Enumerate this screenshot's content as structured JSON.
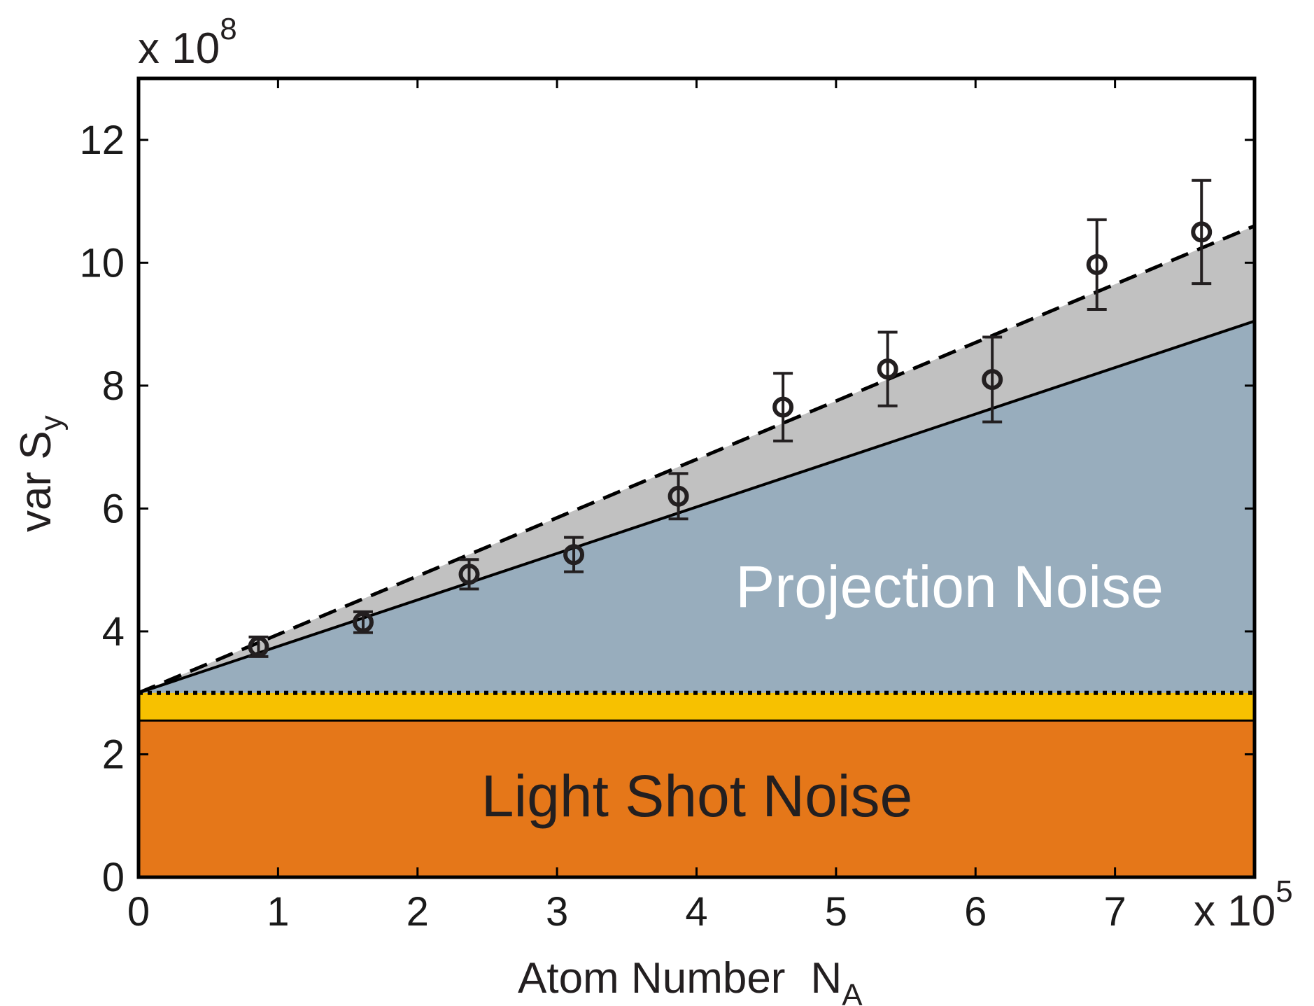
{
  "chart_data": {
    "type": "scatter",
    "xlabel": "Atom Number",
    "xlabel_sub": "N",
    "xlabel_sub_index": "A",
    "ylabel": "var S",
    "ylabel_sub": "y",
    "x_multiplier": "x 10",
    "x_multiplier_exp": "5",
    "y_multiplier": "x 10",
    "y_multiplier_exp": "8",
    "xlim": [
      0,
      800000
    ],
    "ylim": [
      0,
      1300000000
    ],
    "x_ticks": [
      {
        "value": 0,
        "label": "0"
      },
      {
        "value": 100000,
        "label": "1"
      },
      {
        "value": 200000,
        "label": "2"
      },
      {
        "value": 300000,
        "label": "3"
      },
      {
        "value": 400000,
        "label": "4"
      },
      {
        "value": 500000,
        "label": "5"
      },
      {
        "value": 600000,
        "label": "6"
      },
      {
        "value": 700000,
        "label": "7"
      }
    ],
    "y_ticks": [
      {
        "value": 0,
        "label": "0"
      },
      {
        "value": 200000000,
        "label": "2"
      },
      {
        "value": 400000000,
        "label": "4"
      },
      {
        "value": 600000000,
        "label": "6"
      },
      {
        "value": 800000000,
        "label": "8"
      },
      {
        "value": 1000000000,
        "label": "10"
      },
      {
        "value": 1200000000,
        "label": "12"
      }
    ],
    "grid": false,
    "series": [
      {
        "marker": "open-circle",
        "x": [
          86000,
          161000,
          237000,
          312000,
          387000,
          462000,
          537000,
          612000,
          687000,
          762000
        ],
        "y": [
          375000000,
          415000000,
          493000000,
          525000000,
          620000000,
          765000000,
          827000000,
          810000000,
          997000000,
          1050000000
        ],
        "yerr": [
          16000000,
          17000000,
          24000000,
          28000000,
          37000000,
          55000000,
          60000000,
          69000000,
          73000000,
          84000000
        ]
      }
    ],
    "fits": [
      {
        "style": "solid",
        "x": [
          0,
          800000
        ],
        "y": [
          300000000,
          905000000
        ]
      },
      {
        "style": "dashed",
        "x": [
          0,
          800000
        ],
        "y": [
          300000000,
          1060000000
        ]
      }
    ],
    "bands": [
      {
        "label": "Light Shot Noise",
        "y0": 0,
        "y1": 255000000,
        "color": "#e57719",
        "label_color": "#231f20"
      },
      {
        "y0": 255000000,
        "y1": 300000000,
        "color": "#f7c100"
      },
      {
        "label": "Projection Noise",
        "color": "#98adbd",
        "label_color": "#ffffff"
      },
      {
        "color": "#c1c1c1"
      }
    ],
    "dotted_level": 300000000
  }
}
